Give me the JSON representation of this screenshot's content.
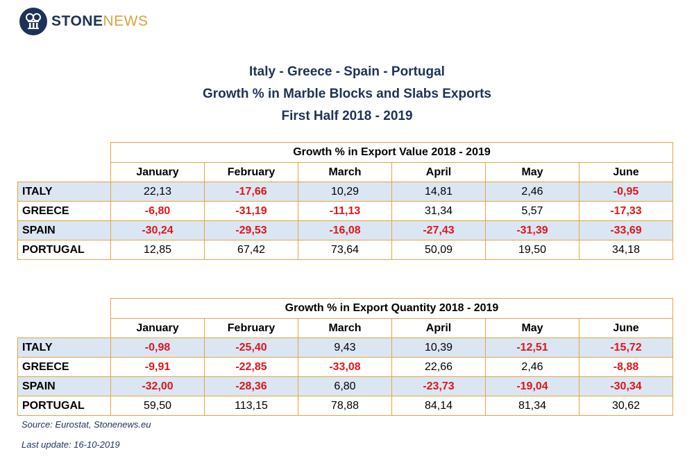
{
  "logo": {
    "brand_part1": "STONE",
    "brand_part2": "NEWS"
  },
  "titles": {
    "line1": "Italy - Greece - Spain - Portugal",
    "line2": "Growth % in Marble Blocks and Slabs Exports",
    "line3": "First Half 2018 - 2019"
  },
  "months": [
    "January",
    "February",
    "March",
    "April",
    "May",
    "June"
  ],
  "table_value": {
    "caption": "Growth % in Export Value 2018 - 2019",
    "rows": [
      {
        "country": "ITALY",
        "values": [
          "22,13",
          "-17,66",
          "10,29",
          "14,81",
          "2,46",
          "-0,95"
        ]
      },
      {
        "country": "GREECE",
        "values": [
          "-6,80",
          "-31,19",
          "-11,13",
          "31,34",
          "5,57",
          "-17,33"
        ]
      },
      {
        "country": "SPAIN",
        "values": [
          "-30,24",
          "-29,53",
          "-16,08",
          "-27,43",
          "-31,39",
          "-33,69"
        ]
      },
      {
        "country": "PORTUGAL",
        "values": [
          "12,85",
          "67,42",
          "73,64",
          "50,09",
          "19,50",
          "34,18"
        ]
      }
    ]
  },
  "table_quantity": {
    "caption": "Growth % in Export Quantity 2018 - 2019",
    "rows": [
      {
        "country": "ITALY",
        "values": [
          "-0,98",
          "-25,40",
          "9,43",
          "10,39",
          "-12,51",
          "-15,72"
        ]
      },
      {
        "country": "GREECE",
        "values": [
          "-9,91",
          "-22,85",
          "-33,08",
          "22,66",
          "2,46",
          "-8,88"
        ]
      },
      {
        "country": "SPAIN",
        "values": [
          "-32,00",
          "-28,36",
          "6,80",
          "-23,73",
          "-19,04",
          "-30,34"
        ]
      },
      {
        "country": "PORTUGAL",
        "values": [
          "59,50",
          "113,15",
          "78,88",
          "84,14",
          "81,34",
          "30,62"
        ]
      }
    ]
  },
  "footer": {
    "source": "Source: Eurostat, Stonenews.eu",
    "last_update": "Last update: 16-10-2019"
  },
  "colors": {
    "brand_navy": "#1e3258",
    "brand_gold": "#d8a43e",
    "border_orange": "#e8a33b",
    "row_shade": "#dbe6f3",
    "negative_red": "#e0161b"
  }
}
